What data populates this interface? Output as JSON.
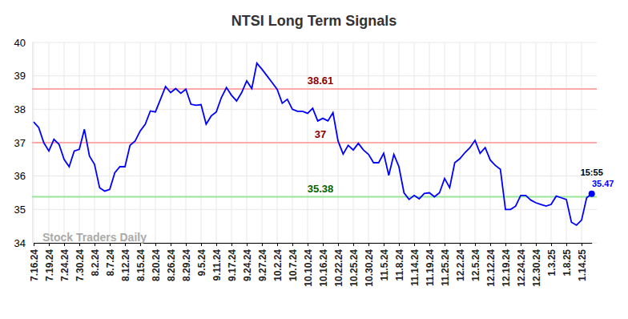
{
  "chart_data": {
    "type": "line",
    "title": "NTSI Long Term Signals",
    "categories": [
      "7.16.24",
      null,
      null,
      "7.19.24",
      null,
      null,
      "7.24.24",
      null,
      null,
      "7.30.24",
      null,
      null,
      "8.2.24",
      null,
      null,
      "8.7.24",
      null,
      null,
      "8.12.24",
      null,
      null,
      "8.15.24",
      null,
      null,
      "8.20.24",
      null,
      null,
      "8.26.24",
      null,
      null,
      "8.29.24",
      null,
      null,
      "9.5.24",
      null,
      null,
      "9.11.24",
      null,
      null,
      "9.17.24",
      null,
      null,
      "9.24.24",
      null,
      null,
      "9.27.24",
      null,
      null,
      "10.2.24",
      null,
      null,
      "10.7.24",
      null,
      null,
      "10.10.24",
      null,
      null,
      "10.16.24",
      null,
      null,
      "10.22.24",
      null,
      null,
      "10.25.24",
      null,
      null,
      "10.30.24",
      null,
      null,
      "11.5.24",
      null,
      null,
      "11.8.24",
      null,
      null,
      "11.14.24",
      null,
      null,
      "11.19.24",
      null,
      null,
      "11.25.24",
      null,
      null,
      "12.2.24",
      null,
      null,
      "12.5.24",
      null,
      null,
      "12.12.24",
      null,
      null,
      "12.19.24",
      null,
      null,
      "12.24.24",
      null,
      null,
      "12.30.24",
      null,
      null,
      "1.3.25",
      null,
      null,
      "1.8.25",
      null,
      null,
      "1.14.25",
      null,
      null
    ],
    "series": [
      {
        "color": "#0000ff",
        "values": [
          37.62,
          37.45,
          37.0,
          36.75,
          37.1,
          36.95,
          36.5,
          36.28,
          36.75,
          36.8,
          37.4,
          36.6,
          36.35,
          35.65,
          35.55,
          35.6,
          36.1,
          36.28,
          36.28,
          36.92,
          37.05,
          37.35,
          37.55,
          37.95,
          37.92,
          38.3,
          38.68,
          38.5,
          38.62,
          38.48,
          38.6,
          38.15,
          38.12,
          38.14,
          37.55,
          37.8,
          37.92,
          38.35,
          38.65,
          38.42,
          38.25,
          38.5,
          38.85,
          38.62,
          39.38,
          39.2,
          39.0,
          38.8,
          38.6,
          38.18,
          38.3,
          38.0,
          37.94,
          37.94,
          37.88,
          38.03,
          37.65,
          37.73,
          37.65,
          37.9,
          37.05,
          36.66,
          36.92,
          36.78,
          36.98,
          36.78,
          36.65,
          36.4,
          36.4,
          36.68,
          36.02,
          36.65,
          36.28,
          35.5,
          35.3,
          35.42,
          35.32,
          35.48,
          35.5,
          35.38,
          35.5,
          35.93,
          35.65,
          36.4,
          36.52,
          36.7,
          36.85,
          37.07,
          36.68,
          36.85,
          36.48,
          36.32,
          36.2,
          35.0,
          35.0,
          35.1,
          35.42,
          35.42,
          35.28,
          35.2,
          35.15,
          35.1,
          35.15,
          35.4,
          35.35,
          35.3,
          34.62,
          34.53,
          34.68,
          35.35,
          35.47
        ]
      }
    ],
    "reference_lines": [
      {
        "value": 38.61,
        "color": "#ffaaaa",
        "label_color": "#8b0000"
      },
      {
        "value": 37,
        "color": "#ffaaaa",
        "label_color": "#8b0000"
      },
      {
        "value": 35.38,
        "color": "#99e699",
        "label_color": "#006400"
      }
    ],
    "last_label": "15:55",
    "watermark": "Stock Traders Daily",
    "ylim": [
      34,
      40
    ],
    "yticks": [
      34,
      35,
      36,
      37,
      38,
      39,
      40
    ],
    "grid": true
  }
}
